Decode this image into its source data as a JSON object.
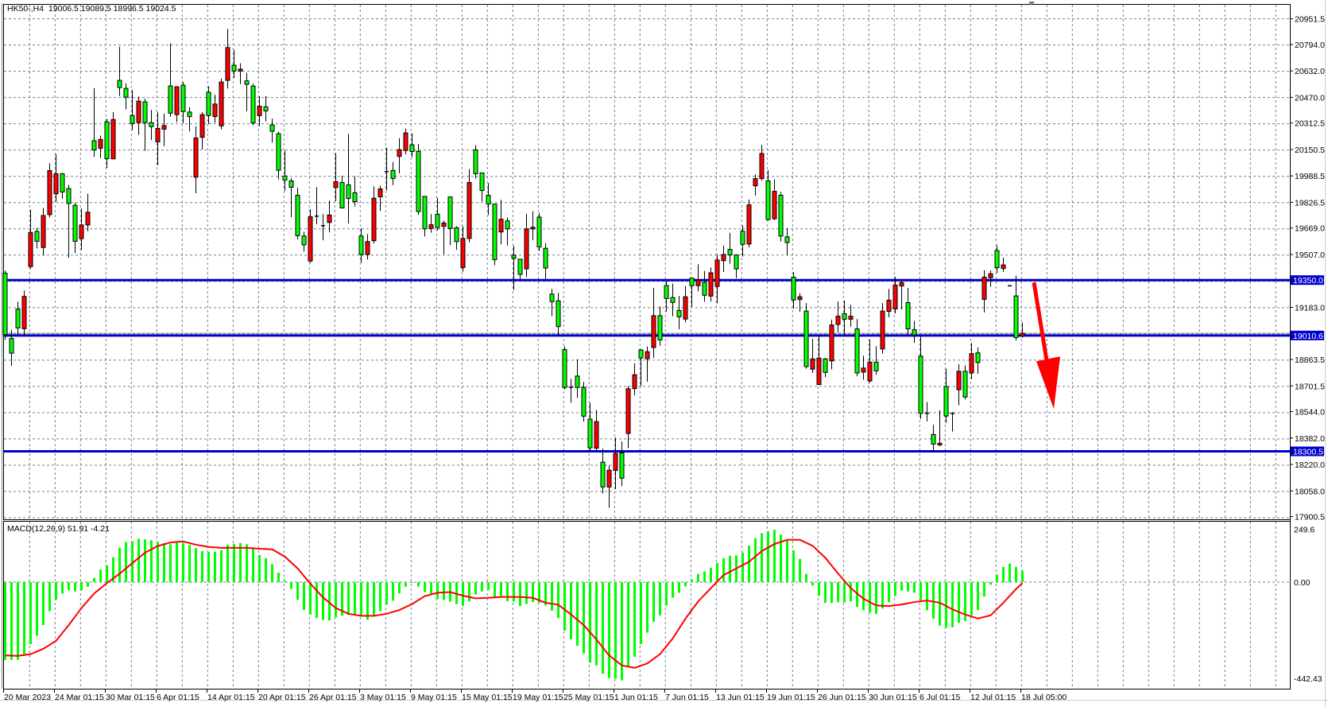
{
  "window": {
    "symbol_header": "HK50-,H4  19006.5 19089.5 18996.5 19024.5",
    "macd_header": "MACD(12,26,9) 51.91 -4.21"
  },
  "colors": {
    "bull_candle": "#ff0000",
    "bear_candle": "#00ff00",
    "level_line": "#0000cc",
    "macd_histogram": "#00ff00",
    "macd_signal": "#ff0000",
    "arrow": "#ff0000",
    "grid": "#708090"
  },
  "price_axis": {
    "range": [
      17900.5,
      20951.5
    ],
    "ticks": [
      "20951.5",
      "20794.0",
      "20632.0",
      "20470.0",
      "20312.5",
      "20150.5",
      "19988.5",
      "19826.5",
      "19669.0",
      "19507.0",
      "19183.0",
      "18863.5",
      "18701.5",
      "18544.0",
      "18382.0",
      "18220.0",
      "18058.0",
      "17900.5"
    ]
  },
  "levels": [
    {
      "price": 19350.0,
      "label": "19350.0"
    },
    {
      "price": 19010.6,
      "label": "19010.6"
    },
    {
      "price": 18300.5,
      "label": "18300.5"
    }
  ],
  "bid_price": 19024.5,
  "macd_axis": {
    "top": "249.6",
    "zero": "0.00",
    "bottom": "-442.43",
    "range": [
      -442.43,
      249.6
    ]
  },
  "time_axis": [
    "20 Mar 2023",
    "24 Mar 01:15",
    "30 Mar 01:15",
    "6 Apr 01:15",
    "14 Apr 01:15",
    "20 Apr 01:15",
    "26 Apr 01:15",
    "3 May 01:15",
    "9 May 01:15",
    "15 May 01:15",
    "19 May 01:15",
    "25 May 01:15",
    "1 Jun 01:15",
    "7 Jun 01:15",
    "13 Jun 01:15",
    "19 Jun 01:15",
    "26 Jun 01:15",
    "30 Jun 01:15",
    "6 Jul 01:15",
    "12 Jul 01:15",
    "18 Jul 05:00"
  ],
  "annotation": {
    "type": "down-arrow",
    "from_price": 19350,
    "to_price": 18560
  },
  "candles_ohlc": [
    [
      19392,
      19408,
      18984,
      19016
    ],
    [
      18992,
      19046,
      18824,
      18902
    ],
    [
      19172,
      19217,
      19013,
      19057
    ],
    [
      19052,
      19286,
      19013,
      19250
    ],
    [
      19433,
      19781,
      19420,
      19642
    ],
    [
      19648,
      19670,
      19544,
      19588
    ],
    [
      19550,
      19792,
      19503,
      19746
    ],
    [
      19751,
      20066,
      19735,
      20021
    ],
    [
      19879,
      20122,
      19830,
      20001
    ],
    [
      20001,
      20008,
      19848,
      19890
    ],
    [
      19911,
      19934,
      19487,
      19820
    ],
    [
      19808,
      19825,
      19515,
      19588
    ],
    [
      19604,
      19789,
      19534,
      19688
    ],
    [
      19688,
      19880,
      19648,
      19766
    ],
    [
      20204,
      20527,
      20106,
      20148
    ],
    [
      20158,
      20236,
      20098,
      20212
    ],
    [
      20320,
      20339,
      20037,
      20094
    ],
    [
      20093,
      20380,
      20093,
      20334
    ],
    [
      20574,
      20780,
      20478,
      20530
    ],
    [
      20525,
      20556,
      20396,
      20471
    ],
    [
      20359,
      20515,
      20270,
      20310
    ],
    [
      20315,
      20475,
      20240,
      20447
    ],
    [
      20442,
      20462,
      20143,
      20315
    ],
    [
      20315,
      20393,
      20208,
      20290
    ],
    [
      20197,
      20380,
      20053,
      20280
    ],
    [
      20275,
      20370,
      20171,
      20297
    ],
    [
      20540,
      20801,
      20350,
      20373
    ],
    [
      20364,
      20535,
      20318,
      20535
    ],
    [
      20545,
      20563,
      20311,
      20383
    ],
    [
      20380,
      20409,
      20262,
      20352
    ],
    [
      19981,
      20293,
      19882,
      20221
    ],
    [
      20225,
      20380,
      20151,
      20364
    ],
    [
      20501,
      20538,
      20306,
      20359
    ],
    [
      20352,
      20486,
      20315,
      20429
    ],
    [
      20295,
      20586,
      20274,
      20564
    ],
    [
      20574,
      20889,
      20524,
      20775
    ],
    [
      20667,
      20762,
      20589,
      20631
    ],
    [
      20631,
      20679,
      20551,
      20643
    ],
    [
      20571,
      20620,
      20385,
      20550
    ],
    [
      20539,
      20555,
      20299,
      20313
    ],
    [
      20358,
      20477,
      20294,
      20416
    ],
    [
      20412,
      20477,
      20322,
      20387
    ],
    [
      20301,
      20340,
      20193,
      20262
    ],
    [
      20247,
      20260,
      19968,
      20023
    ],
    [
      19988,
      20144,
      19896,
      19963
    ],
    [
      19958,
      19974,
      19736,
      19919
    ],
    [
      19870,
      19916,
      19599,
      19622
    ],
    [
      19620,
      19646,
      19525,
      19566
    ],
    [
      19467,
      19785,
      19455,
      19738
    ],
    [
      19741,
      19920,
      19692,
      19742
    ],
    [
      19682,
      19754,
      19594,
      19683
    ],
    [
      19703,
      19837,
      19643,
      19749
    ],
    [
      19917,
      20128,
      19834,
      19953
    ],
    [
      19948,
      19989,
      19790,
      19792
    ],
    [
      19934,
      20247,
      19697,
      19850
    ],
    [
      19885,
      19986,
      19801,
      19831
    ],
    [
      19620,
      19667,
      19455,
      19507
    ],
    [
      19507,
      19632,
      19476,
      19586
    ],
    [
      19591,
      19924,
      19574,
      19852
    ],
    [
      19860,
      19929,
      19774,
      19909
    ],
    [
      20014,
      20162,
      19899,
      20015
    ],
    [
      20022,
      20073,
      19932,
      19973
    ],
    [
      20108,
      20219,
      20004,
      20149
    ],
    [
      20144,
      20278,
      20120,
      20252
    ],
    [
      20179,
      20249,
      20103,
      20138
    ],
    [
      20139,
      20185,
      19749,
      19770
    ],
    [
      19863,
      19863,
      19618,
      19664
    ],
    [
      19667,
      19754,
      19641,
      19689
    ],
    [
      19754,
      19855,
      19654,
      19672
    ],
    [
      19679,
      19715,
      19509,
      19700
    ],
    [
      19860,
      19860,
      19565,
      19667
    ],
    [
      19671,
      19680,
      19535,
      19586
    ],
    [
      19427,
      19680,
      19401,
      19605
    ],
    [
      19605,
      20030,
      19581,
      19948
    ],
    [
      20148,
      20177,
      19972,
      20002
    ],
    [
      20007,
      20007,
      19831,
      19899
    ],
    [
      19870,
      19945,
      19749,
      19816
    ],
    [
      19816,
      19816,
      19442,
      19475
    ],
    [
      19645,
      19842,
      19569,
      19723
    ],
    [
      19713,
      19733,
      19561,
      19664
    ],
    [
      19502,
      19561,
      19289,
      19483
    ],
    [
      19478,
      19478,
      19352,
      19385
    ],
    [
      19419,
      19757,
      19368,
      19664
    ],
    [
      19664,
      19772,
      19594,
      19674
    ],
    [
      19736,
      19762,
      19529,
      19553
    ],
    [
      19545,
      19576,
      19346,
      19424
    ],
    [
      19264,
      19297,
      19128,
      19218
    ],
    [
      19223,
      19272,
      19011,
      19065
    ],
    [
      18924,
      18944,
      18681,
      18692
    ],
    [
      18692,
      18745,
      18598,
      18693
    ],
    [
      18762,
      18865,
      18628,
      18692
    ],
    [
      18692,
      18725,
      18483,
      18516
    ],
    [
      18498,
      18598,
      18301,
      18322
    ],
    [
      18320,
      18554,
      18307,
      18483
    ],
    [
      18234,
      18317,
      18043,
      18082
    ],
    [
      18082,
      18214,
      17955,
      18185
    ],
    [
      18183,
      18386,
      18069,
      18288
    ],
    [
      18291,
      18361,
      18088,
      18136
    ],
    [
      18410,
      18699,
      18320,
      18684
    ],
    [
      18685,
      18840,
      18644,
      18770
    ],
    [
      18922,
      18927,
      18699,
      18873
    ],
    [
      18868,
      18944,
      18728,
      18911
    ],
    [
      18937,
      19303,
      18874,
      19132
    ],
    [
      19132,
      19189,
      18948,
      18983
    ],
    [
      19317,
      19342,
      19157,
      19237
    ],
    [
      19243,
      19328,
      19128,
      19213
    ],
    [
      19164,
      19253,
      19049,
      19125
    ],
    [
      19111,
      19313,
      19091,
      19248
    ],
    [
      19362,
      19362,
      19187,
      19316
    ],
    [
      19316,
      19447,
      19282,
      19349
    ],
    [
      19336,
      19406,
      19218,
      19257
    ],
    [
      19252,
      19427,
      19218,
      19395
    ],
    [
      19311,
      19506,
      19208,
      19473
    ],
    [
      19469,
      19561,
      19400,
      19507
    ],
    [
      19538,
      19640,
      19451,
      19504
    ],
    [
      19504,
      19509,
      19362,
      19419
    ],
    [
      19649,
      19685,
      19495,
      19569
    ],
    [
      19571,
      19844,
      19550,
      19811
    ],
    [
      19928,
      19997,
      19868,
      19972
    ],
    [
      19972,
      20178,
      19958,
      20126
    ],
    [
      19958,
      20023,
      19716,
      19721
    ],
    [
      19726,
      19967,
      19718,
      19894
    ],
    [
      19870,
      19891,
      19587,
      19620
    ],
    [
      19615,
      19669,
      19505,
      19580
    ],
    [
      19368,
      19399,
      19174,
      19228
    ],
    [
      19231,
      19270,
      19156,
      19248
    ],
    [
      19160,
      19209,
      18807,
      18820
    ],
    [
      18804,
      18991,
      18781,
      18867
    ],
    [
      18710,
      19004,
      18710,
      18872
    ],
    [
      18867,
      18873,
      18756,
      18784
    ],
    [
      18855,
      19108,
      18803,
      19075
    ],
    [
      19078,
      19219,
      19029,
      19129
    ],
    [
      19144,
      19225,
      19010,
      19110
    ],
    [
      19110,
      19198,
      19064,
      19129
    ],
    [
      19051,
      19111,
      18760,
      18781
    ],
    [
      18786,
      18887,
      18740,
      18811
    ],
    [
      18732,
      18985,
      18721,
      18847
    ],
    [
      18847,
      18945,
      18770,
      18794
    ],
    [
      18928,
      19209,
      18900,
      19160
    ],
    [
      19158,
      19296,
      19121,
      19227
    ],
    [
      19173,
      19369,
      19145,
      19320
    ],
    [
      19314,
      19348,
      19170,
      19335
    ],
    [
      19212,
      19301,
      19015,
      19051
    ],
    [
      19046,
      19100,
      18966,
      19013
    ],
    [
      18884,
      19007,
      18500,
      18533
    ],
    [
      18533,
      18602,
      18484,
      18534
    ],
    [
      18404,
      18463,
      18300,
      18345
    ],
    [
      18340,
      18553,
      18332,
      18350
    ],
    [
      18698,
      18806,
      18476,
      18517
    ],
    [
      18533,
      18540,
      18422,
      18533
    ],
    [
      18678,
      18835,
      18582,
      18791
    ],
    [
      18791,
      18827,
      18618,
      18634
    ],
    [
      18781,
      18964,
      18744,
      18899
    ],
    [
      18904,
      18937,
      18776,
      18845
    ],
    [
      19232,
      19410,
      19152,
      19368
    ],
    [
      19364,
      19410,
      19309,
      19389
    ],
    [
      19531,
      19563,
      19394,
      19426
    ],
    [
      19421,
      19488,
      19400,
      19443
    ],
    [
      19315,
      19318,
      19312,
      19315
    ],
    [
      19253,
      19377,
      18980,
      18998
    ],
    [
      19006.5,
      19089.5,
      18996.5,
      19024.5
    ]
  ],
  "macd_main": [
    -351,
    -351,
    -351,
    -331,
    -280,
    -242,
    -194,
    -131,
    -81,
    -52,
    -36,
    -42,
    -37,
    -21,
    19,
    57,
    76,
    112,
    156,
    181,
    184,
    196,
    193,
    189,
    181,
    176,
    171,
    181,
    177,
    169,
    154,
    140,
    137,
    136,
    144,
    169,
    173,
    176,
    171,
    155,
    123,
    108,
    82,
    43,
    6,
    -31,
    -80,
    -126,
    -146,
    -162,
    -171,
    -173,
    -158,
    -151,
    -148,
    -150,
    -150,
    -170,
    -150,
    -130,
    -101,
    -84,
    -51,
    -21,
    0,
    -20,
    -45,
    -56,
    -77,
    -81,
    -88,
    -99,
    -107,
    -87,
    -56,
    -42,
    -35,
    -67,
    -63,
    -86,
    -88,
    -108,
    -98,
    -90,
    -94,
    -105,
    -129,
    -162,
    -219,
    -258,
    -287,
    -322,
    -363,
    -376,
    -414,
    -433,
    -437,
    -444,
    -384,
    -337,
    -280,
    -228,
    -179,
    -150,
    -106,
    -70,
    -48,
    -19,
    12,
    37,
    48,
    65,
    87,
    108,
    119,
    121,
    134,
    165,
    198,
    221,
    230,
    236,
    215,
    190,
    144,
    105,
    37,
    -15,
    -61,
    -94,
    -94,
    -90,
    -92,
    -87,
    -112,
    -127,
    -137,
    -144,
    -119,
    -90,
    -63,
    -38,
    -42,
    -48,
    -83,
    -127,
    -165,
    -196,
    -206,
    -204,
    -184,
    -176,
    -149,
    -127,
    -65,
    -12,
    33,
    69,
    84,
    69,
    52
  ],
  "macd_signal_by_bar": [
    [
      0,
      -331
    ],
    [
      2,
      -333
    ],
    [
      4,
      -325
    ],
    [
      6,
      -301
    ],
    [
      8,
      -265
    ],
    [
      10,
      -194
    ],
    [
      12,
      -117
    ],
    [
      14,
      -51
    ],
    [
      16,
      -4
    ],
    [
      18,
      38
    ],
    [
      20,
      86
    ],
    [
      22,
      133
    ],
    [
      24,
      163
    ],
    [
      26,
      179
    ],
    [
      28,
      184
    ],
    [
      30,
      169
    ],
    [
      32,
      159
    ],
    [
      34,
      155
    ],
    [
      36,
      155
    ],
    [
      38,
      155
    ],
    [
      40,
      151
    ],
    [
      42,
      148
    ],
    [
      44,
      115
    ],
    [
      46,
      62
    ],
    [
      48,
      -7
    ],
    [
      50,
      -69
    ],
    [
      52,
      -117
    ],
    [
      54,
      -143
    ],
    [
      56,
      -152
    ],
    [
      58,
      -152
    ],
    [
      60,
      -143
    ],
    [
      62,
      -126
    ],
    [
      64,
      -99
    ],
    [
      66,
      -63
    ],
    [
      68,
      -48
    ],
    [
      70,
      -45
    ],
    [
      72,
      -61
    ],
    [
      74,
      -73
    ],
    [
      76,
      -71
    ],
    [
      78,
      -67
    ],
    [
      80,
      -67
    ],
    [
      81,
      -67
    ],
    [
      83,
      -71
    ],
    [
      85,
      -93
    ],
    [
      87,
      -102
    ],
    [
      89,
      -146
    ],
    [
      91,
      -194
    ],
    [
      93,
      -259
    ],
    [
      95,
      -331
    ],
    [
      97,
      -376
    ],
    [
      99,
      -387
    ],
    [
      101,
      -367
    ],
    [
      103,
      -325
    ],
    [
      105,
      -254
    ],
    [
      107,
      -165
    ],
    [
      109,
      -87
    ],
    [
      111,
      -27
    ],
    [
      113,
      32
    ],
    [
      115,
      62
    ],
    [
      117,
      92
    ],
    [
      119,
      140
    ],
    [
      121,
      172
    ],
    [
      123,
      191
    ],
    [
      125,
      191
    ],
    [
      127,
      164
    ],
    [
      129,
      110
    ],
    [
      131,
      39
    ],
    [
      133,
      -27
    ],
    [
      135,
      -75
    ],
    [
      137,
      -105
    ],
    [
      139,
      -108
    ],
    [
      141,
      -101
    ],
    [
      143,
      -90
    ],
    [
      145,
      -83
    ],
    [
      147,
      -93
    ],
    [
      149,
      -123
    ],
    [
      151,
      -146
    ],
    [
      153,
      -164
    ],
    [
      155,
      -150
    ],
    [
      157,
      -93
    ],
    [
      159,
      -31
    ],
    [
      160,
      -4
    ]
  ]
}
